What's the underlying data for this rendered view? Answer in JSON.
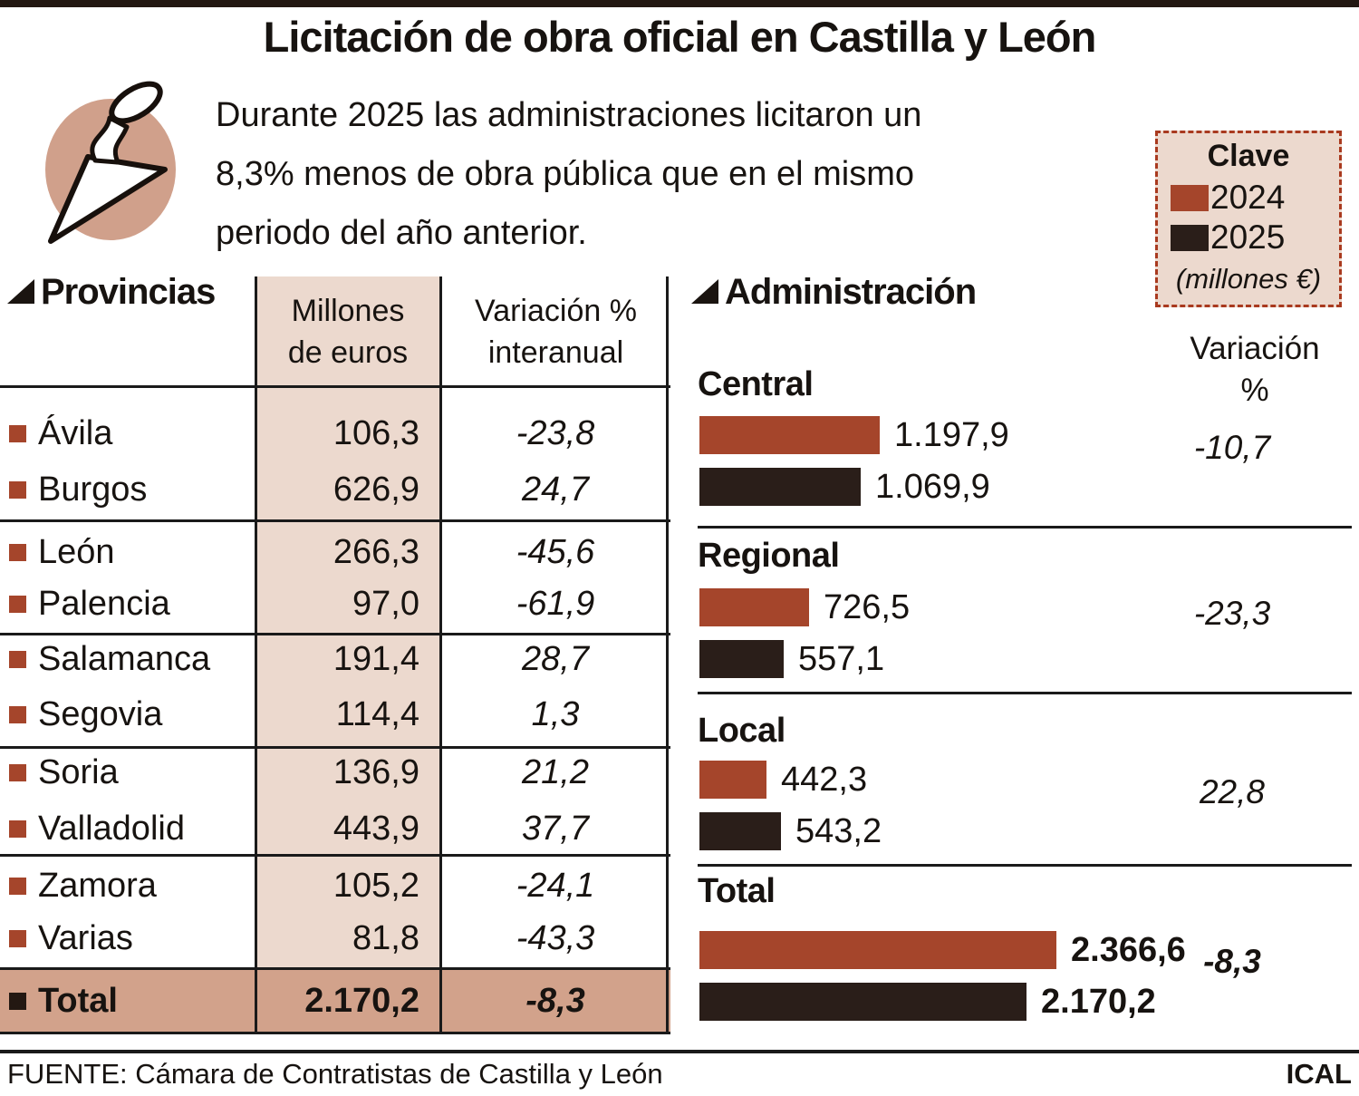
{
  "title": "Licitación de obra oficial en Castilla y León",
  "intro_lines": [
    "Durante 2025 las administraciones licitaron un",
    "8,3% menos de obra pública que en el mismo",
    "periodo del año anterior."
  ],
  "legend": {
    "title": "Clave",
    "items": [
      {
        "label": "2024",
        "color": "#a5452b"
      },
      {
        "label": "2025",
        "color": "#2a1e19"
      }
    ],
    "unit": "(millones €)"
  },
  "provinces_table": {
    "header": "Provincias",
    "col_millones": [
      "Millones",
      "de euros"
    ],
    "col_variacion": [
      "Variación %",
      "interanual"
    ],
    "rows": [
      {
        "name": "Ávila",
        "millones": "106,3",
        "variacion": "-23,8"
      },
      {
        "name": "Burgos",
        "millones": "626,9",
        "variacion": "24,7"
      },
      {
        "name": "León",
        "millones": "266,3",
        "variacion": "-45,6"
      },
      {
        "name": "Palencia",
        "millones": "97,0",
        "variacion": "-61,9"
      },
      {
        "name": "Salamanca",
        "millones": "191,4",
        "variacion": "28,7"
      },
      {
        "name": "Segovia",
        "millones": "114,4",
        "variacion": "1,3"
      },
      {
        "name": "Soria",
        "millones": "136,9",
        "variacion": "21,2"
      },
      {
        "name": "Valladolid",
        "millones": "443,9",
        "variacion": "37,7"
      },
      {
        "name": "Zamora",
        "millones": "105,2",
        "variacion": "-24,1"
      },
      {
        "name": "Varias",
        "millones": "81,8",
        "variacion": "-43,3"
      }
    ],
    "total": {
      "name": "Total",
      "millones": "2.170,2",
      "variacion": "-8,3"
    }
  },
  "admin": {
    "header": "Administración",
    "variation_label_lines": [
      "Variación",
      "%"
    ],
    "sections": [
      {
        "label": "Central",
        "bars": [
          {
            "year": "2024",
            "display": "1.197,9",
            "value": 1197.9
          },
          {
            "year": "2025",
            "display": "1.069,9",
            "value": 1069.9
          }
        ],
        "variation": "-10,7",
        "bold": false
      },
      {
        "label": "Regional",
        "bars": [
          {
            "year": "2024",
            "display": "726,5",
            "value": 726.5
          },
          {
            "year": "2025",
            "display": "557,1",
            "value": 557.1
          }
        ],
        "variation": "-23,3",
        "bold": false
      },
      {
        "label": "Local",
        "bars": [
          {
            "year": "2024",
            "display": "442,3",
            "value": 442.3
          },
          {
            "year": "2025",
            "display": "543,2",
            "value": 543.2
          }
        ],
        "variation": "22,8",
        "bold": false
      },
      {
        "label": "Total",
        "bars": [
          {
            "year": "2024",
            "display": "2.366,6",
            "value": 2366.6
          },
          {
            "year": "2025",
            "display": "2.170,2",
            "value": 2170.2
          }
        ],
        "variation": "-8,3",
        "bold": true
      }
    ]
  },
  "colors": {
    "year2024": "#a5452b",
    "year2025": "#2a1e19",
    "pink_column": "#ecd9ce",
    "total_row": "#d2a28b",
    "legend_border": "#a93a1f",
    "topbar": "#231812"
  },
  "footer": {
    "source": "FUENTE: Cámara de Contratistas de Castilla y León",
    "credit": "ICAL"
  },
  "chart_data": [
    {
      "type": "table",
      "title": "Provincias",
      "columns": [
        "Provincia",
        "Millones de euros",
        "Variación % interanual"
      ],
      "rows": [
        [
          "Ávila",
          106.3,
          -23.8
        ],
        [
          "Burgos",
          626.9,
          24.7
        ],
        [
          "León",
          266.3,
          -45.6
        ],
        [
          "Palencia",
          97.0,
          -61.9
        ],
        [
          "Salamanca",
          191.4,
          28.7
        ],
        [
          "Segovia",
          114.4,
          1.3
        ],
        [
          "Soria",
          136.9,
          21.2
        ],
        [
          "Valladolid",
          443.9,
          37.7
        ],
        [
          "Zamora",
          105.2,
          -24.1
        ],
        [
          "Varias",
          81.8,
          -43.3
        ]
      ],
      "total_row": [
        "Total",
        2170.2,
        -8.3
      ]
    },
    {
      "type": "bar",
      "orientation": "horizontal",
      "title": "Administración",
      "unit": "millones €",
      "categories": [
        "Central",
        "Regional",
        "Local",
        "Total"
      ],
      "series": [
        {
          "name": "2024",
          "color": "#a5452b",
          "values": [
            1197.9,
            726.5,
            442.3,
            2366.6
          ]
        },
        {
          "name": "2025",
          "color": "#2a1e19",
          "values": [
            1069.9,
            557.1,
            543.2,
            2170.2
          ]
        }
      ],
      "variation_pct": [
        -10.7,
        -23.3,
        22.8,
        -8.3
      ],
      "legend_position": "top-right",
      "grid": false
    }
  ]
}
